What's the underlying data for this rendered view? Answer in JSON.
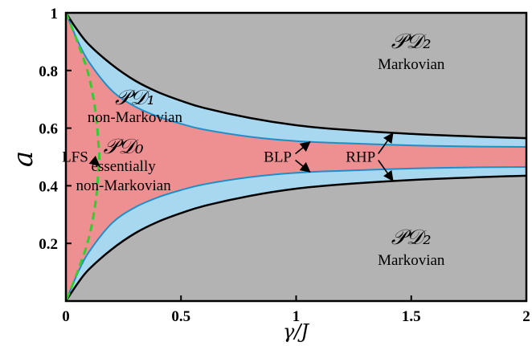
{
  "chart_data": {
    "type": "area",
    "title": "",
    "xlabel": "γ/J",
    "ylabel": "a",
    "xlim": [
      0,
      2
    ],
    "ylim": [
      0,
      1
    ],
    "x_ticks": [
      "0",
      "0.5",
      "1",
      "1.5",
      "2"
    ],
    "y_ticks": [
      "0.2",
      "0.4",
      "0.6",
      "0.8",
      "1"
    ],
    "grid": false,
    "colors": {
      "markovian": "#b3b3b3",
      "non_markovian": "#a8d8f0",
      "essentially_non_markovian": "#ee8f91",
      "blp_boundary": "#1f8fc8",
      "rhp_boundary": "#000000",
      "lfs_boundary": "#33cc33"
    },
    "series": [
      {
        "name": "RHP",
        "branch": "upper",
        "x": [
          0,
          0.05,
          0.1,
          0.2,
          0.3,
          0.4,
          0.5,
          0.6,
          0.8,
          1.0,
          1.2,
          1.5,
          1.8,
          2.0
        ],
        "y": [
          1.0,
          0.94,
          0.89,
          0.82,
          0.765,
          0.725,
          0.695,
          0.67,
          0.635,
          0.61,
          0.595,
          0.58,
          0.57,
          0.565
        ]
      },
      {
        "name": "BLP",
        "branch": "upper",
        "x": [
          0,
          0.05,
          0.1,
          0.2,
          0.3,
          0.4,
          0.5,
          0.6,
          0.8,
          1.0,
          1.2,
          1.5,
          1.8,
          2.0
        ],
        "y": [
          1.0,
          0.905,
          0.83,
          0.73,
          0.675,
          0.64,
          0.615,
          0.595,
          0.57,
          0.555,
          0.548,
          0.54,
          0.536,
          0.535
        ]
      },
      {
        "name": "BLP",
        "branch": "lower",
        "x": [
          0,
          0.05,
          0.1,
          0.2,
          0.3,
          0.4,
          0.5,
          0.6,
          0.8,
          1.0,
          1.2,
          1.5,
          1.8,
          2.0
        ],
        "y": [
          0.0,
          0.095,
          0.17,
          0.27,
          0.325,
          0.36,
          0.385,
          0.405,
          0.43,
          0.445,
          0.452,
          0.46,
          0.464,
          0.465
        ]
      },
      {
        "name": "RHP",
        "branch": "lower",
        "x": [
          0,
          0.05,
          0.1,
          0.2,
          0.3,
          0.4,
          0.5,
          0.6,
          0.8,
          1.0,
          1.2,
          1.5,
          1.8,
          2.0
        ],
        "y": [
          0.0,
          0.06,
          0.11,
          0.18,
          0.235,
          0.275,
          0.305,
          0.33,
          0.365,
          0.39,
          0.405,
          0.42,
          0.43,
          0.435
        ]
      },
      {
        "name": "LFS",
        "branch": "boundary",
        "x": [
          0.0,
          0.05,
          0.1,
          0.13,
          0.14,
          0.145,
          0.14,
          0.13,
          0.1,
          0.05,
          0.0
        ],
        "y": [
          1.0,
          0.9,
          0.78,
          0.65,
          0.56,
          0.5,
          0.44,
          0.35,
          0.22,
          0.1,
          0.0
        ]
      }
    ],
    "regions": [
      {
        "id": "pd2-top",
        "label_math": "𝒫𝒟₂",
        "label_text": "Markovian",
        "x": 1.5,
        "y": 0.85
      },
      {
        "id": "pd1",
        "label_math": "𝒫𝒟₁",
        "label_text": "non-Markovian",
        "x": 0.3,
        "y": 0.66
      },
      {
        "id": "pd0",
        "label_math": "𝒫𝒟₀",
        "label_text": "essentially",
        "label_text_2": "non-Markovian",
        "x": 0.25,
        "y": 0.49
      },
      {
        "id": "pd2-bottom",
        "label_math": "𝒫𝒟₂",
        "label_text": "Markovian",
        "x": 1.5,
        "y": 0.17
      }
    ],
    "annotations": [
      {
        "id": "lfs",
        "text": "LFS",
        "text_x": 0.04,
        "text_y": 0.5,
        "arrows": [
          {
            "x": 0.145,
            "y": 0.47
          }
        ]
      },
      {
        "id": "blp",
        "text": "BLP",
        "text_x": 0.92,
        "text_y": 0.5,
        "arrows": [
          {
            "x": 1.06,
            "y": 0.552
          },
          {
            "x": 1.06,
            "y": 0.448
          }
        ]
      },
      {
        "id": "rhp",
        "text": "RHP",
        "text_x": 1.28,
        "text_y": 0.5,
        "arrows": [
          {
            "x": 1.42,
            "y": 0.582
          },
          {
            "x": 1.42,
            "y": 0.418
          }
        ]
      }
    ]
  }
}
